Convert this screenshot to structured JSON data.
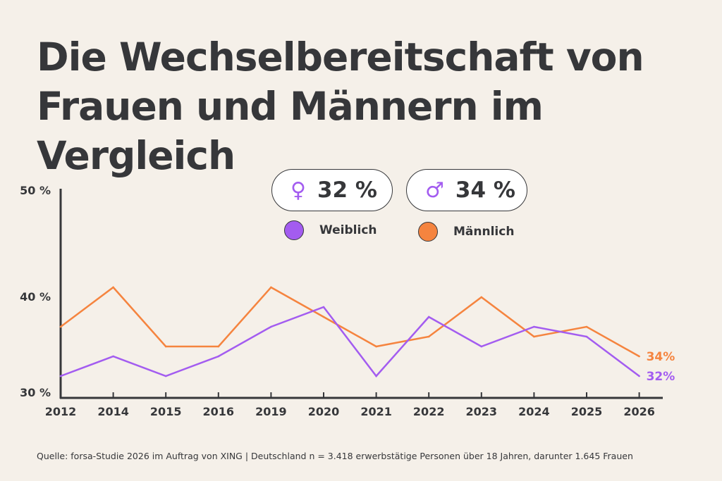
{
  "title_line1": "Die Wechselbereitschaft von",
  "title_line2": "Frauen und Männern im Vergleich",
  "pills": [
    {
      "symbol": "♀",
      "icon": "female-symbol-icon",
      "value": "32 %"
    },
    {
      "symbol": "♂",
      "icon": "male-symbol-icon",
      "value": "34 %"
    }
  ],
  "source": "Quelle: forsa-Studie 2026 im Auftrag von XING | Deutschland n = 3.418 erwerbstätige Personen über 18 Jahren, darunter 1.645 Frauen",
  "chart_data": {
    "type": "line",
    "categories": [
      "2012",
      "2014",
      "2015",
      "2016",
      "2019",
      "2020",
      "2021",
      "2022",
      "2023",
      "2024",
      "2025",
      "2026"
    ],
    "series": [
      {
        "name": "Weiblich",
        "color": "#a35cf0",
        "values": [
          32,
          34,
          32,
          34,
          37,
          39,
          32,
          38,
          35,
          37,
          36,
          32
        ],
        "end_label": "32%"
      },
      {
        "name": "Männlich",
        "color": "#f5843f",
        "values": [
          37,
          41,
          35,
          35,
          41,
          38,
          35,
          36,
          40,
          36,
          37,
          34
        ],
        "end_label": "34%"
      }
    ],
    "yticks": [
      30,
      40,
      50
    ],
    "ytick_labels": [
      "30 %",
      "40 %",
      "50 %"
    ],
    "ylim": [
      30,
      50
    ],
    "grid": false,
    "legend": "top-center"
  }
}
